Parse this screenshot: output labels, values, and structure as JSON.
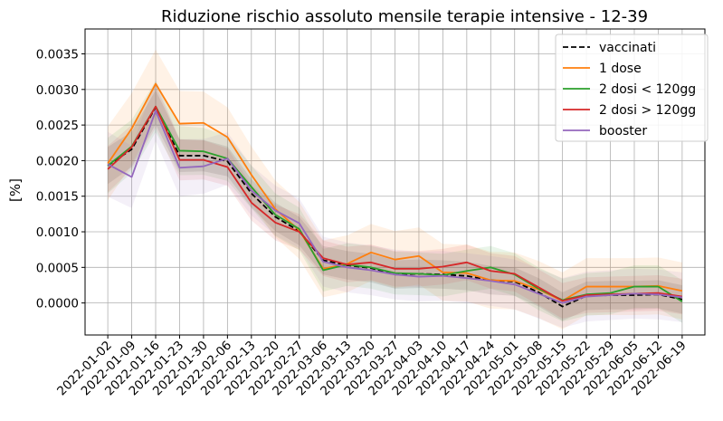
{
  "chart_data": {
    "type": "line",
    "title": "Riduzione rischio assoluto mensile terapie intensive - 12-39",
    "xlabel": "",
    "ylabel": "[%]",
    "ylim": [
      -0.00045,
      0.00385
    ],
    "yticks": [
      0.0,
      0.0005,
      0.001,
      0.0015,
      0.002,
      0.0025,
      0.003,
      0.0035
    ],
    "ytick_labels": [
      "0.0000",
      "0.0005",
      "0.0010",
      "0.0015",
      "0.0020",
      "0.0025",
      "0.0030",
      "0.0035"
    ],
    "grid": true,
    "legend_position": "top-right",
    "categories": [
      "2022-01-02",
      "2022-01-09",
      "2022-01-16",
      "2022-01-23",
      "2022-01-30",
      "2022-02-06",
      "2022-02-13",
      "2022-02-20",
      "2022-02-27",
      "2022-03-06",
      "2022-03-13",
      "2022-03-20",
      "2022-03-27",
      "2022-04-03",
      "2022-04-10",
      "2022-04-17",
      "2022-04-24",
      "2022-05-01",
      "2022-05-08",
      "2022-05-15",
      "2022-05-22",
      "2022-05-29",
      "2022-06-05",
      "2022-06-12",
      "2022-06-19"
    ],
    "series": [
      {
        "name": "vaccinati",
        "color": "#000000",
        "dash": true,
        "values": [
          0.00193,
          0.00216,
          0.00275,
          0.00207,
          0.00207,
          0.00199,
          0.00154,
          0.00121,
          0.00101,
          0.0006,
          0.00053,
          0.00049,
          0.0004,
          0.00041,
          0.0004,
          0.00038,
          0.00032,
          0.0003,
          0.00015,
          -5e-05,
          0.0001,
          0.00011,
          0.00011,
          0.00012,
          5e-05
        ],
        "band": 0.0002
      },
      {
        "name": "1 dose",
        "color": "#ff7f0e",
        "values": [
          0.00196,
          0.00245,
          0.00308,
          0.00252,
          0.00253,
          0.00233,
          0.0018,
          0.00132,
          0.00102,
          0.00048,
          0.00055,
          0.00071,
          0.00061,
          0.00066,
          0.00043,
          0.00042,
          0.00032,
          0.00031,
          0.00019,
          3e-05,
          0.00023,
          0.00023,
          0.00023,
          0.00024,
          0.00017
        ],
        "band": 0.0004
      },
      {
        "name": "2 dosi < 120gg",
        "color": "#2ca02c",
        "values": [
          0.00193,
          0.0022,
          0.00276,
          0.00214,
          0.00213,
          0.00203,
          0.00163,
          0.00124,
          0.00104,
          0.00046,
          0.00054,
          0.0005,
          0.00042,
          0.00041,
          0.00039,
          0.00045,
          0.0005,
          0.0004,
          0.0002,
          4e-05,
          0.00012,
          0.00014,
          0.00023,
          0.00023,
          2e-05
        ],
        "band": 0.0003
      },
      {
        "name": "2 dosi > 120gg",
        "color": "#d62728",
        "values": [
          0.00188,
          0.00219,
          0.00276,
          0.00201,
          0.00201,
          0.00191,
          0.00141,
          0.00113,
          0.001,
          0.00063,
          0.00054,
          0.00057,
          0.00048,
          0.00048,
          0.00051,
          0.00057,
          0.00045,
          0.00041,
          0.00022,
          3e-05,
          0.00011,
          0.00012,
          0.00013,
          0.00014,
          9e-05
        ],
        "band": 0.00025
      },
      {
        "name": "booster",
        "color": "#9467bd",
        "values": [
          0.00195,
          0.00177,
          0.0027,
          0.0019,
          0.00192,
          0.00203,
          0.00158,
          0.0013,
          0.00112,
          0.00058,
          0.0005,
          0.00046,
          0.0004,
          0.00037,
          0.00038,
          0.00035,
          0.00031,
          0.00026,
          0.00013,
          0.0,
          9e-05,
          0.00011,
          0.00013,
          0.00012,
          8e-05
        ],
        "band": 0.00035
      }
    ]
  }
}
